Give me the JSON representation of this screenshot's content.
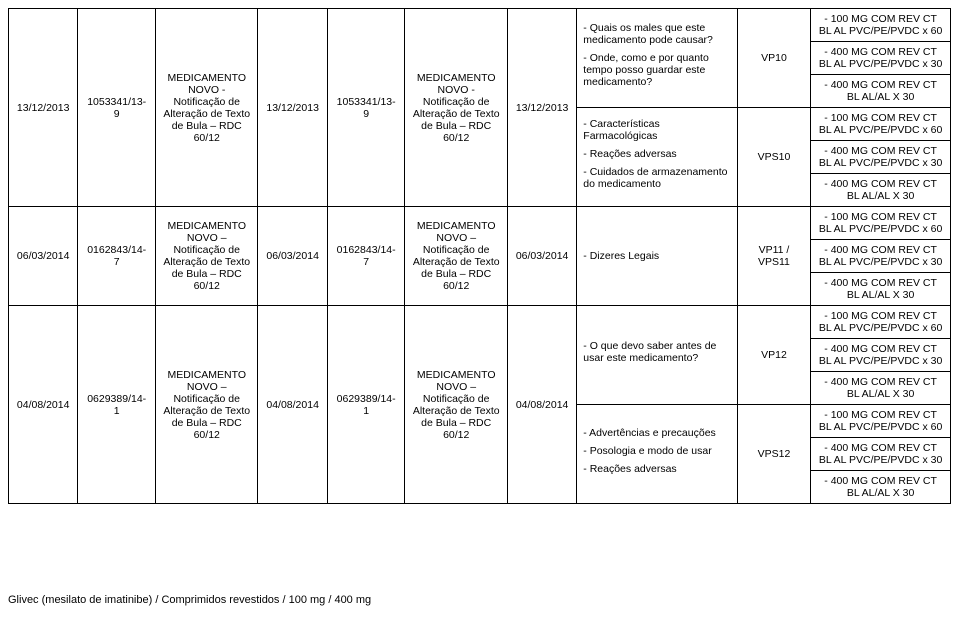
{
  "footer": "Glivec (mesilato de imatinibe) / Comprimidos revestidos / 100 mg / 400 mg",
  "med_text": "MEDICAMENTO NOVO - Notificação de Alteração de Texto de Bula – RDC 60/12",
  "med_text_dash": "MEDICAMENTO NOVO – Notificação de Alteração de Texto de Bula – RDC 60/12",
  "pack100_60": "- 100 MG COM REV CT BL AL PVC/PE/PVDC x 60",
  "pack400_30": "- 400 MG COM REV CT BL AL PVC/PE/PVDC x 30",
  "pack400_al30": "- 400 MG COM REV CT BL AL/AL X 30",
  "row1": {
    "date": "13/12/2013",
    "proto": "1053341/13-9",
    "obs1": "- Quais os males que este medicamento pode causar?",
    "obs2": "- Onde, como e por quanto tempo posso guardar este medicamento?",
    "obs3": "- Características Farmacológicas",
    "obs4": "- Reações adversas",
    "obs5": "- Cuidados de armazenamento do medicamento",
    "vp_a": "VP10",
    "vp_b": "VPS10"
  },
  "row2": {
    "date": "06/03/2014",
    "proto": "0162843/14-7",
    "obs": "- Dizeres Legais",
    "vp": "VP11 / VPS11"
  },
  "row3": {
    "date": "04/08/2014",
    "proto": "0629389/14-1",
    "obs1": "- O que devo saber antes de usar este medicamento?",
    "obs2": "- Advertências e precauções",
    "obs3": "- Posologia e modo de usar",
    "obs4": "- Reações adversas",
    "vp_a": "VP12",
    "vp_b": "VPS12"
  }
}
